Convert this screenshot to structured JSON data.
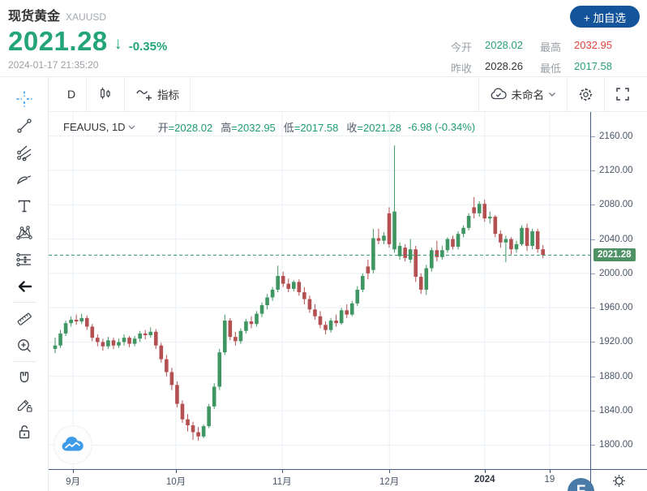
{
  "header": {
    "title": "现货黄金",
    "symbol": "XAUUSD",
    "price": "2021.28",
    "direction_arrow": "↓",
    "change_pct": "-0.35%",
    "timestamp": "2024-01-17 21:35:20",
    "watch_button": "+ 加自选",
    "stats": [
      {
        "label": "今开",
        "value": "2028.02",
        "color": "green"
      },
      {
        "label": "最高",
        "value": "2032.95",
        "color": "red"
      },
      {
        "label": "昨收",
        "value": "2028.26",
        "color": "dark"
      },
      {
        "label": "最低",
        "value": "2017.58",
        "color": "green"
      }
    ]
  },
  "toolbar": {
    "interval": "D",
    "indicator_label": "指标",
    "layout_name": "未命名",
    "icons": [
      "candlestick-style-icon",
      "indicator-wave-plus-icon",
      "cloud-check-icon",
      "chevron-down-icon",
      "gear-icon",
      "fullscreen-icon"
    ]
  },
  "sidebar": {
    "tools": [
      "crosshair",
      "trend-line",
      "gann-tools",
      "brush",
      "text",
      "xabcd-pattern",
      "long-position",
      "back-arrow",
      "ruler",
      "zoom-in",
      "magnet",
      "draw-lock",
      "lock"
    ]
  },
  "legend": {
    "symbol_text": "FEAUUS, 1D",
    "open_k": "开",
    "open_v": "=2028.02",
    "high_k": "高",
    "high_v": "=2032.95",
    "low_k": "低",
    "low_v": "=2017.58",
    "close_k": "收",
    "close_v": "=2021.28",
    "change": "-6.98 (-0.34%)"
  },
  "watermarks": {
    "bottom_right_logo": "F",
    "collapse_glyph": "‹"
  },
  "colors": {
    "up_candle": "#3f9663",
    "down_candle": "#b44f52",
    "accent_green": "#23a577",
    "stat_red": "#e0443c",
    "button_blue": "#14549b",
    "badge_green": "#4e9164",
    "grid": "#e9eff5",
    "axis_line": "#44597c",
    "price_line": "#2f9c63"
  },
  "chart_data": {
    "type": "candlestick",
    "symbol": "FEAUUS",
    "interval": "1D",
    "title": "现货黄金 XAUUSD 日线",
    "current_price": 2021.28,
    "current_price_label": "2021.28",
    "price_top": 2188,
    "price_bottom": 1772,
    "y_ticks": [
      {
        "v": 2160,
        "label": "2160.00"
      },
      {
        "v": 2120,
        "label": "2120.00"
      },
      {
        "v": 2080,
        "label": "2080.00"
      },
      {
        "v": 2040,
        "label": "2040.00"
      },
      {
        "v": 2000,
        "label": "2000.00"
      },
      {
        "v": 1960,
        "label": "1960.00"
      },
      {
        "v": 1920,
        "label": "1920.00"
      },
      {
        "v": 1880,
        "label": "1880.00"
      },
      {
        "v": 1840,
        "label": "1840.00"
      },
      {
        "v": 1800,
        "label": "1800.00"
      }
    ],
    "x_ticks": [
      {
        "pos": 0.045,
        "label": "9月",
        "bold": false
      },
      {
        "pos": 0.235,
        "label": "10月",
        "bold": false
      },
      {
        "pos": 0.431,
        "label": "11月",
        "bold": false
      },
      {
        "pos": 0.629,
        "label": "12月",
        "bold": false
      },
      {
        "pos": 0.805,
        "label": "2024",
        "bold": true
      },
      {
        "pos": 0.925,
        "label": "19",
        "bold": false
      }
    ],
    "candles": [
      [
        1912,
        1925,
        1907,
        1916
      ],
      [
        1916,
        1934,
        1913,
        1930
      ],
      [
        1930,
        1945,
        1927,
        1942
      ],
      [
        1942,
        1950,
        1938,
        1946
      ],
      [
        1946,
        1952,
        1940,
        1944
      ],
      [
        1944,
        1953,
        1941,
        1948
      ],
      [
        1948,
        1951,
        1934,
        1938
      ],
      [
        1938,
        1941,
        1921,
        1925
      ],
      [
        1925,
        1929,
        1915,
        1920
      ],
      [
        1920,
        1924,
        1910,
        1915
      ],
      [
        1915,
        1926,
        1912,
        1922
      ],
      [
        1922,
        1925,
        1912,
        1916
      ],
      [
        1916,
        1924,
        1913,
        1920
      ],
      [
        1920,
        1929,
        1916,
        1925
      ],
      [
        1925,
        1927,
        1914,
        1918
      ],
      [
        1918,
        1927,
        1915,
        1924
      ],
      [
        1924,
        1933,
        1920,
        1930
      ],
      [
        1930,
        1934,
        1923,
        1928
      ],
      [
        1928,
        1937,
        1925,
        1932
      ],
      [
        1932,
        1935,
        1912,
        1916
      ],
      [
        1916,
        1919,
        1896,
        1900
      ],
      [
        1900,
        1905,
        1880,
        1885
      ],
      [
        1885,
        1890,
        1864,
        1870
      ],
      [
        1870,
        1874,
        1844,
        1848
      ],
      [
        1848,
        1852,
        1826,
        1830
      ],
      [
        1830,
        1836,
        1816,
        1823
      ],
      [
        1823,
        1827,
        1806,
        1815
      ],
      [
        1815,
        1821,
        1805,
        1810
      ],
      [
        1810,
        1824,
        1808,
        1822
      ],
      [
        1822,
        1848,
        1820,
        1845
      ],
      [
        1845,
        1872,
        1842,
        1868
      ],
      [
        1868,
        1912,
        1864,
        1908
      ],
      [
        1908,
        1952,
        1905,
        1945
      ],
      [
        1945,
        1948,
        1922,
        1926
      ],
      [
        1926,
        1932,
        1916,
        1921
      ],
      [
        1921,
        1936,
        1918,
        1933
      ],
      [
        1933,
        1947,
        1930,
        1944
      ],
      [
        1944,
        1950,
        1936,
        1941
      ],
      [
        1941,
        1956,
        1938,
        1953
      ],
      [
        1953,
        1966,
        1949,
        1963
      ],
      [
        1963,
        1976,
        1958,
        1972
      ],
      [
        1972,
        1984,
        1968,
        1981
      ],
      [
        1981,
        2009,
        1978,
        1997
      ],
      [
        1997,
        2002,
        1984,
        1988
      ],
      [
        1988,
        1994,
        1978,
        1982
      ],
      [
        1982,
        1992,
        1979,
        1990
      ],
      [
        1990,
        1993,
        1974,
        1978
      ],
      [
        1978,
        1984,
        1964,
        1970
      ],
      [
        1970,
        1974,
        1954,
        1958
      ],
      [
        1958,
        1964,
        1946,
        1950
      ],
      [
        1950,
        1956,
        1936,
        1940
      ],
      [
        1940,
        1944,
        1929,
        1934
      ],
      [
        1934,
        1948,
        1931,
        1945
      ],
      [
        1945,
        1952,
        1938,
        1942
      ],
      [
        1942,
        1960,
        1940,
        1957
      ],
      [
        1957,
        1964,
        1948,
        1952
      ],
      [
        1952,
        1968,
        1950,
        1965
      ],
      [
        1965,
        1985,
        1962,
        1981
      ],
      [
        1981,
        2000,
        1978,
        1997
      ],
      [
        2008,
        2016,
        1993,
        2000
      ],
      [
        2004,
        2052,
        2000,
        2041
      ],
      [
        2041,
        2052,
        2034,
        2038
      ],
      [
        2038,
        2048,
        2034,
        2044
      ],
      [
        2070,
        2077,
        2030,
        2034
      ],
      [
        2028,
        2149,
        2024,
        2072
      ],
      [
        2020,
        2036,
        2016,
        2032
      ],
      [
        2030,
        2034,
        2014,
        2018
      ],
      [
        2016,
        2040,
        2012,
        2028
      ],
      [
        2028,
        2032,
        1990,
        1996
      ],
      [
        1996,
        2000,
        1976,
        1981
      ],
      [
        1981,
        2010,
        1975,
        2006
      ],
      [
        2006,
        2030,
        2002,
        2027
      ],
      [
        2027,
        2038,
        2014,
        2019
      ],
      [
        2019,
        2032,
        2016,
        2027
      ],
      [
        2027,
        2042,
        2024,
        2040
      ],
      [
        2040,
        2044,
        2028,
        2031
      ],
      [
        2031,
        2049,
        2028,
        2046
      ],
      [
        2046,
        2056,
        2042,
        2053
      ],
      [
        2053,
        2070,
        2050,
        2067
      ],
      [
        2077,
        2089,
        2064,
        2070
      ],
      [
        2070,
        2084,
        2066,
        2081
      ],
      [
        2081,
        2086,
        2060,
        2064
      ],
      [
        2064,
        2072,
        2058,
        2066
      ],
      [
        2066,
        2068,
        2042,
        2046
      ],
      [
        2046,
        2050,
        2030,
        2036
      ],
      [
        2036,
        2044,
        2013,
        2040
      ],
      [
        2040,
        2042,
        2022,
        2028
      ],
      [
        2028,
        2038,
        2024,
        2034
      ],
      [
        2034,
        2056,
        2032,
        2053
      ],
      [
        2053,
        2058,
        2026,
        2032
      ],
      [
        2032,
        2052,
        2028,
        2049
      ],
      [
        2049,
        2052,
        2024,
        2028.26
      ],
      [
        2028.02,
        2032.95,
        2017.58,
        2021.28
      ]
    ]
  }
}
